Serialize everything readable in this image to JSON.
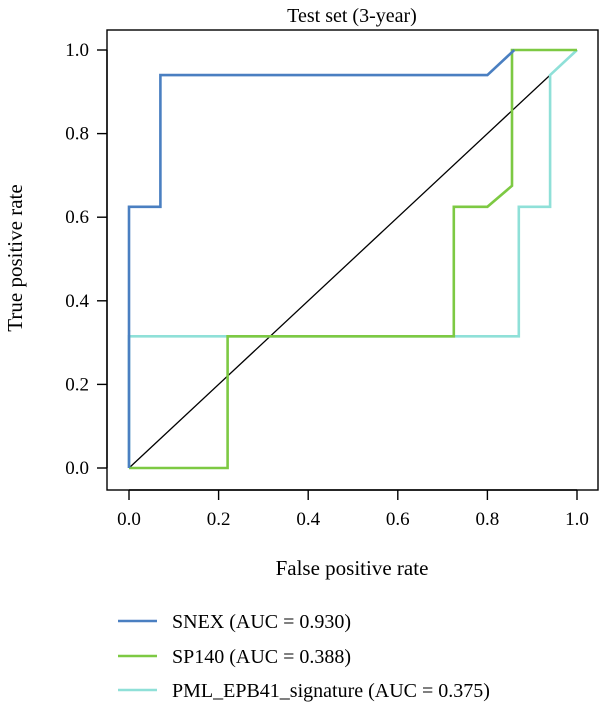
{
  "chart_data": {
    "type": "line",
    "title": "Test set (3-year)",
    "xlabel": "False positive rate",
    "ylabel": "True positive rate",
    "xlim": [
      0.0,
      1.0
    ],
    "ylim": [
      0.0,
      1.0
    ],
    "xticks": [
      "0.0",
      "0.2",
      "0.4",
      "0.6",
      "0.8",
      "1.0"
    ],
    "yticks": [
      "0.0",
      "0.2",
      "0.4",
      "0.6",
      "0.8",
      "1.0"
    ],
    "grid": false,
    "legend_position": "bottom",
    "reference_line": {
      "x": [
        0,
        1
      ],
      "y": [
        0,
        1
      ],
      "color": "#000000"
    },
    "series": [
      {
        "name": "SNEX (AUC = 0.930)",
        "color": "#4a7fc1",
        "x": [
          0.0,
          0.0,
          0.07,
          0.07,
          0.8,
          0.86,
          0.86
        ],
        "y": [
          0.0,
          0.625,
          0.625,
          0.94,
          0.94,
          1.0,
          1.0
        ]
      },
      {
        "name": "SP140 (AUC = 0.388)",
        "color": "#7dc943",
        "x": [
          0.0,
          0.22,
          0.22,
          0.725,
          0.725,
          0.8,
          0.855,
          0.855,
          1.0
        ],
        "y": [
          0.0,
          0.0,
          0.315,
          0.315,
          0.625,
          0.625,
          0.675,
          1.0,
          1.0
        ]
      },
      {
        "name": "PML_EPB41_signature (AUC = 0.375)",
        "color": "#8fe0d8",
        "x": [
          0.0,
          0.0,
          0.87,
          0.87,
          0.94,
          0.94,
          1.0
        ],
        "y": [
          0.0,
          0.315,
          0.315,
          0.625,
          0.625,
          0.94,
          1.0
        ]
      }
    ]
  }
}
